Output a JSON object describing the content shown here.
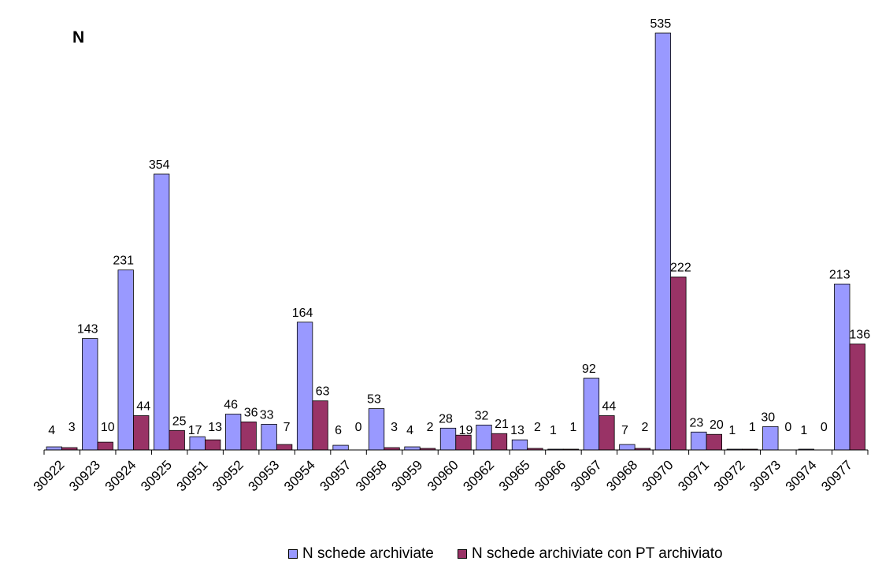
{
  "chart_data": {
    "type": "bar",
    "title": "",
    "xlabel": "",
    "ylabel": "N",
    "ylim": [
      0,
      535
    ],
    "grid": false,
    "legend_position": "bottom",
    "categories": [
      "30922",
      "30923",
      "30924",
      "30925",
      "30951",
      "30952",
      "30953",
      "30954",
      "30957",
      "30958",
      "30959",
      "30960",
      "30962",
      "30965",
      "30966",
      "30967",
      "30968",
      "30970",
      "30971",
      "30972",
      "30973",
      "30974",
      "30977"
    ],
    "series": [
      {
        "name": "N schede archiviate",
        "color": "#9999ff",
        "values": [
          4,
          143,
          231,
          354,
          17,
          46,
          33,
          164,
          6,
          53,
          4,
          28,
          32,
          13,
          1,
          92,
          7,
          535,
          23,
          1,
          30,
          1,
          213
        ]
      },
      {
        "name": "N schede archiviate con PT archiviato",
        "color": "#993366",
        "values": [
          3,
          10,
          44,
          25,
          13,
          36,
          7,
          63,
          0,
          3,
          2,
          19,
          21,
          2,
          1,
          44,
          2,
          222,
          20,
          1,
          0,
          0,
          136
        ]
      }
    ]
  }
}
